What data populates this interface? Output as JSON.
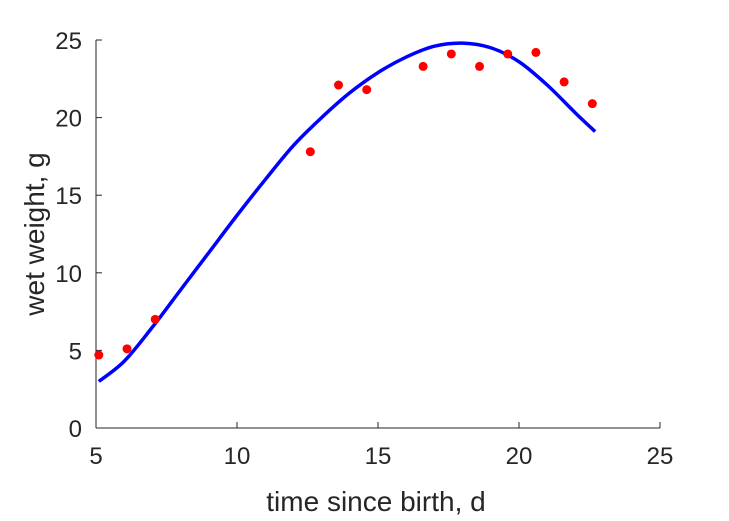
{
  "chart_data": {
    "type": "scatter",
    "title": "",
    "xlabel": "time since birth, d",
    "ylabel": "wet weight, g",
    "xlim": [
      5,
      25
    ],
    "ylim": [
      0,
      25
    ],
    "xticks": [
      5,
      10,
      15,
      20,
      25
    ],
    "yticks": [
      0,
      5,
      10,
      15,
      20,
      25
    ],
    "grid": false,
    "box": false,
    "series": [
      {
        "kind": "scatter",
        "color": "#ff0000",
        "x": [
          5.1,
          6.1,
          7.1,
          12.6,
          13.6,
          14.6,
          16.6,
          17.6,
          18.6,
          19.6,
          20.6,
          21.6,
          22.6
        ],
        "y": [
          4.7,
          5.1,
          7.0,
          17.8,
          22.1,
          21.8,
          23.3,
          24.1,
          23.3,
          24.1,
          24.2,
          22.3,
          20.9
        ]
      },
      {
        "kind": "line",
        "color": "#0000ff",
        "x": [
          5.1,
          6,
          7,
          8,
          9,
          10,
          11,
          12,
          13,
          14,
          15,
          16,
          17,
          18,
          19,
          20,
          21,
          22,
          22.7
        ],
        "y": [
          3.0,
          4.3,
          6.5,
          8.9,
          11.3,
          13.7,
          16.0,
          18.2,
          20.0,
          21.6,
          22.9,
          23.9,
          24.6,
          24.8,
          24.5,
          23.6,
          22.1,
          20.3,
          19.1
        ]
      }
    ]
  }
}
